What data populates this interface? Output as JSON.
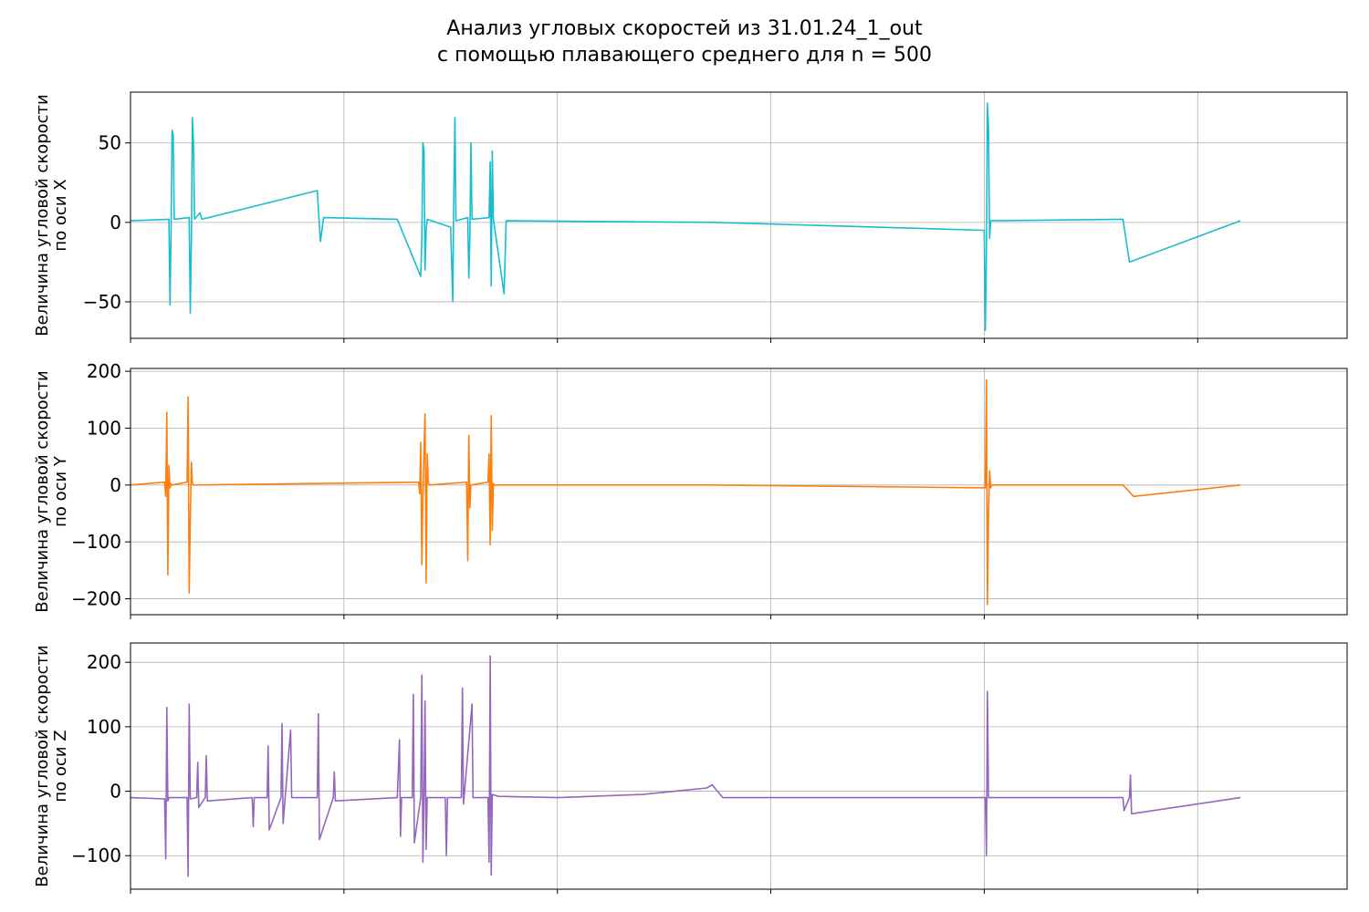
{
  "figure": {
    "title_line1": "Анализ угловых скоростей из 31.01.24_1_out",
    "title_line2": "с помощью плавающего среднего для n = 500"
  },
  "chart_data": [
    {
      "type": "line",
      "title": "",
      "ylabel_line1": "Величина угловой скорости",
      "ylabel_line2": "по оси X",
      "color": "#17becf",
      "grid": true,
      "xlim": [
        0,
        1.14
      ],
      "ylim": [
        -73,
        82
      ],
      "yticks": [
        -50,
        0,
        50
      ],
      "ytick_labels": [
        "−50",
        "0",
        "50"
      ],
      "xticks": [
        0,
        0.2,
        0.4,
        0.6,
        0.8,
        1.0
      ],
      "series": [
        {
          "x": [
            0,
            0.036,
            0.037,
            0.038,
            0.039,
            0.04,
            0.041,
            0.055,
            0.056,
            0.057,
            0.058,
            0.059,
            0.06,
            0.065,
            0.067,
            0.175,
            0.178,
            0.181,
            0.25,
            0.272,
            0.273,
            0.274,
            0.275,
            0.276,
            0.277,
            0.278,
            0.3,
            0.302,
            0.303,
            0.304,
            0.305,
            0.316,
            0.317,
            0.318,
            0.319,
            0.32,
            0.336,
            0.337,
            0.338,
            0.339,
            0.34,
            0.35,
            0.352,
            0.545,
            0.8,
            0.801,
            0.802,
            0.803,
            0.804,
            0.805,
            0.806,
            0.93,
            0.936,
            1.04
          ],
          "values": [
            1,
            2,
            -52,
            -8,
            58,
            55,
            2,
            3,
            -57,
            -10,
            66,
            50,
            2,
            6,
            2,
            20,
            -12,
            3,
            2,
            -34,
            -10,
            50,
            45,
            -30,
            -5,
            2,
            -3,
            -50,
            20,
            66,
            1,
            3,
            -35,
            -10,
            50,
            2,
            3,
            38,
            -40,
            45,
            2,
            -45,
            1,
            0,
            -5,
            -68,
            -20,
            75,
            60,
            -10,
            1,
            2,
            -25,
            1
          ]
        }
      ]
    },
    {
      "type": "line",
      "title": "",
      "ylabel_line1": "Величина угловой скорости",
      "ylabel_line2": "по оси Y",
      "color": "#ff7f0e",
      "grid": true,
      "xlim": [
        0,
        1.14
      ],
      "ylim": [
        -228,
        205
      ],
      "yticks": [
        -200,
        -100,
        0,
        100,
        200
      ],
      "ytick_labels": [
        "−200",
        "−100",
        "0",
        "100",
        "200"
      ],
      "xticks": [
        0,
        0.2,
        0.4,
        0.6,
        0.8,
        1.0
      ],
      "series": [
        {
          "x": [
            0,
            0.032,
            0.033,
            0.034,
            0.035,
            0.036,
            0.037,
            0.038,
            0.039,
            0.053,
            0.054,
            0.055,
            0.056,
            0.057,
            0.058,
            0.059,
            0.27,
            0.271,
            0.272,
            0.273,
            0.274,
            0.275,
            0.276,
            0.277,
            0.278,
            0.279,
            0.28,
            0.315,
            0.316,
            0.317,
            0.318,
            0.319,
            0.335,
            0.336,
            0.337,
            0.338,
            0.339,
            0.34,
            0.341,
            0.545,
            0.8,
            0.801,
            0.802,
            0.803,
            0.804,
            0.805,
            0.806,
            0.807,
            0.93,
            0.94,
            1.04
          ],
          "values": [
            0,
            5,
            -20,
            128,
            -158,
            35,
            -5,
            2,
            0,
            5,
            155,
            -190,
            -60,
            40,
            3,
            0,
            5,
            -15,
            75,
            -140,
            -15,
            60,
            125,
            -172,
            55,
            5,
            0,
            5,
            -133,
            87,
            -40,
            0,
            5,
            55,
            -105,
            122,
            -80,
            3,
            0,
            0,
            -5,
            -5,
            185,
            -210,
            -50,
            25,
            -5,
            0,
            0,
            -20,
            0
          ]
        }
      ]
    },
    {
      "type": "line",
      "title": "",
      "ylabel_line1": "Величина угловой скорости",
      "ylabel_line2": "по оси Z",
      "color": "#9467bd",
      "grid": true,
      "xlim": [
        0,
        1.14
      ],
      "ylim": [
        -152,
        230
      ],
      "yticks": [
        -100,
        0,
        100,
        200
      ],
      "ytick_labels": [
        "−100",
        "0",
        "100",
        "200"
      ],
      "xticks": [
        0,
        0.2,
        0.4,
        0.6,
        0.8,
        1.0
      ],
      "series": [
        {
          "x": [
            0,
            0.032,
            0.033,
            0.034,
            0.035,
            0.036,
            0.053,
            0.054,
            0.055,
            0.056,
            0.062,
            0.063,
            0.064,
            0.07,
            0.071,
            0.072,
            0.114,
            0.115,
            0.116,
            0.128,
            0.129,
            0.13,
            0.141,
            0.142,
            0.143,
            0.15,
            0.151,
            0.175,
            0.176,
            0.177,
            0.19,
            0.191,
            0.192,
            0.25,
            0.252,
            0.253,
            0.254,
            0.264,
            0.265,
            0.266,
            0.272,
            0.273,
            0.274,
            0.275,
            0.276,
            0.277,
            0.278,
            0.295,
            0.296,
            0.297,
            0.31,
            0.311,
            0.312,
            0.32,
            0.321,
            0.335,
            0.336,
            0.337,
            0.338,
            0.339,
            0.345,
            0.4,
            0.48,
            0.54,
            0.545,
            0.555,
            0.8,
            0.801,
            0.802,
            0.803,
            0.804,
            0.93,
            0.931,
            0.936,
            0.937,
            0.938,
            1.04
          ],
          "values": [
            -10,
            -12,
            -105,
            130,
            -15,
            -10,
            -10,
            -132,
            135,
            -12,
            -10,
            45,
            -25,
            -10,
            55,
            -15,
            -10,
            -55,
            -10,
            -10,
            70,
            -60,
            -10,
            105,
            -50,
            95,
            -10,
            -10,
            120,
            -75,
            -10,
            30,
            -15,
            -10,
            80,
            -70,
            -10,
            -10,
            150,
            -80,
            -10,
            180,
            -110,
            -10,
            140,
            -90,
            -10,
            -10,
            -100,
            -10,
            -10,
            160,
            -20,
            135,
            -10,
            -10,
            -110,
            210,
            -130,
            -5,
            -8,
            -10,
            -5,
            5,
            10,
            -10,
            -10,
            -10,
            -100,
            155,
            -10,
            -10,
            -30,
            -10,
            25,
            -35,
            -10
          ]
        }
      ]
    }
  ]
}
